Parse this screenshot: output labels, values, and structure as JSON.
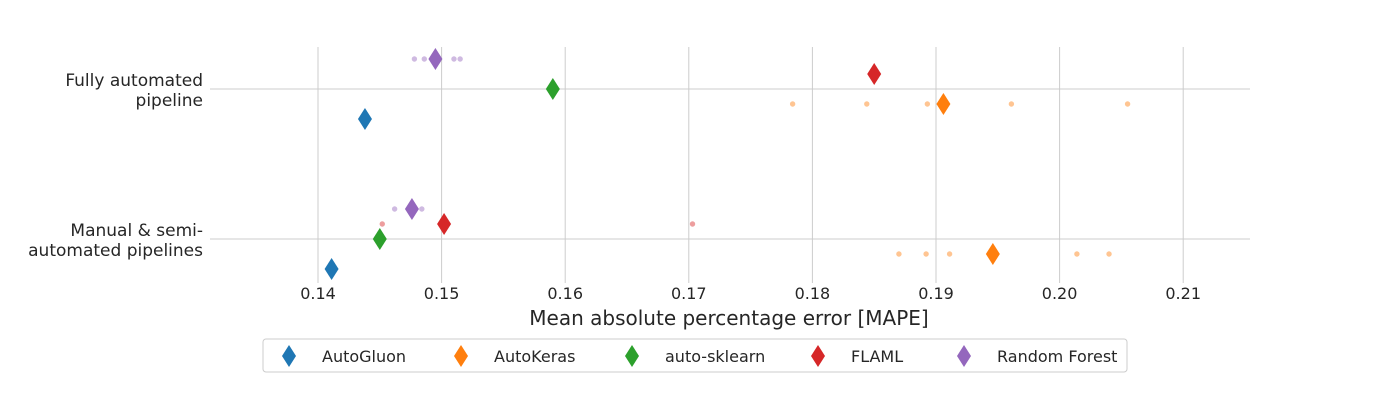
{
  "chart_data": {
    "type": "scatter",
    "xlabel": "Mean absolute percentage error [MAPE]",
    "ylabel": "",
    "title": "",
    "xlim": [
      0.1313,
      0.2157
    ],
    "xticks": [
      0.14,
      0.15,
      0.16,
      0.17,
      0.18,
      0.19,
      0.2,
      0.21
    ],
    "xtick_labels": [
      "0.14",
      "0.15",
      "0.16",
      "0.17",
      "0.18",
      "0.19",
      "0.20",
      "0.21"
    ],
    "categories": [
      {
        "lines": [
          "Fully automated",
          "pipeline"
        ]
      },
      {
        "lines": [
          "Manual & semi-",
          "automated pipelines"
        ]
      }
    ],
    "grid": true,
    "legend_position": "bottom-center",
    "series": [
      {
        "name": "AutoGluon",
        "color": "#1f77b4",
        "means": [
          0.1438,
          0.1411
        ],
        "runs": [
          [],
          []
        ]
      },
      {
        "name": "AutoKeras",
        "color": "#ff7f0e",
        "means": [
          0.1906,
          0.1946
        ],
        "runs": [
          [
            0.1784,
            0.1844,
            0.1893,
            0.1961,
            0.2055
          ],
          [
            0.187,
            0.1892,
            0.1911,
            0.2014,
            0.204
          ]
        ]
      },
      {
        "name": "auto-sklearn",
        "color": "#2ca02c",
        "means": [
          0.159,
          0.145
        ],
        "runs": [
          [],
          []
        ]
      },
      {
        "name": "FLAML",
        "color": "#d62728",
        "means": [
          0.185,
          0.1502
        ],
        "runs": [
          [],
          [
            0.1452,
            0.1703
          ]
        ]
      },
      {
        "name": "Random Forest",
        "color": "#9467bd",
        "means": [
          0.1495,
          0.1476
        ],
        "runs": [
          [
            0.1478,
            0.1486,
            0.151,
            0.1515
          ],
          [
            0.1462,
            0.1484
          ]
        ]
      }
    ]
  }
}
